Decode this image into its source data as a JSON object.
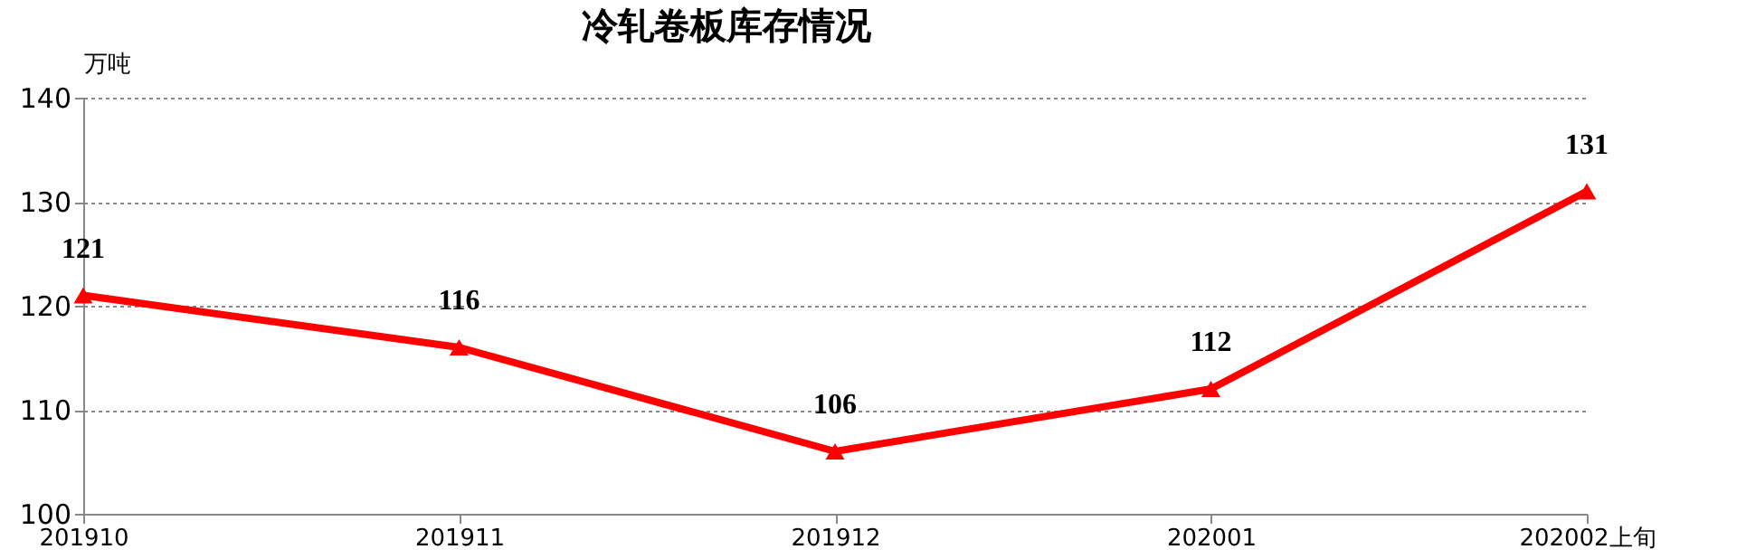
{
  "chart_data": {
    "type": "line",
    "title": "冷轧卷板库存情况",
    "ylabel": "万吨",
    "categories": [
      "201910",
      "201911",
      "201912",
      "202001",
      "202002上旬"
    ],
    "series": [
      {
        "color": "#ff0000",
        "values": [
          121,
          116,
          106,
          112,
          131
        ]
      }
    ],
    "ylim": [
      100,
      140
    ],
    "yticks": [
      100,
      110,
      120,
      130,
      140
    ],
    "grid": "y",
    "marker": "triangle",
    "line_style": "solid",
    "data_labels": true
  }
}
